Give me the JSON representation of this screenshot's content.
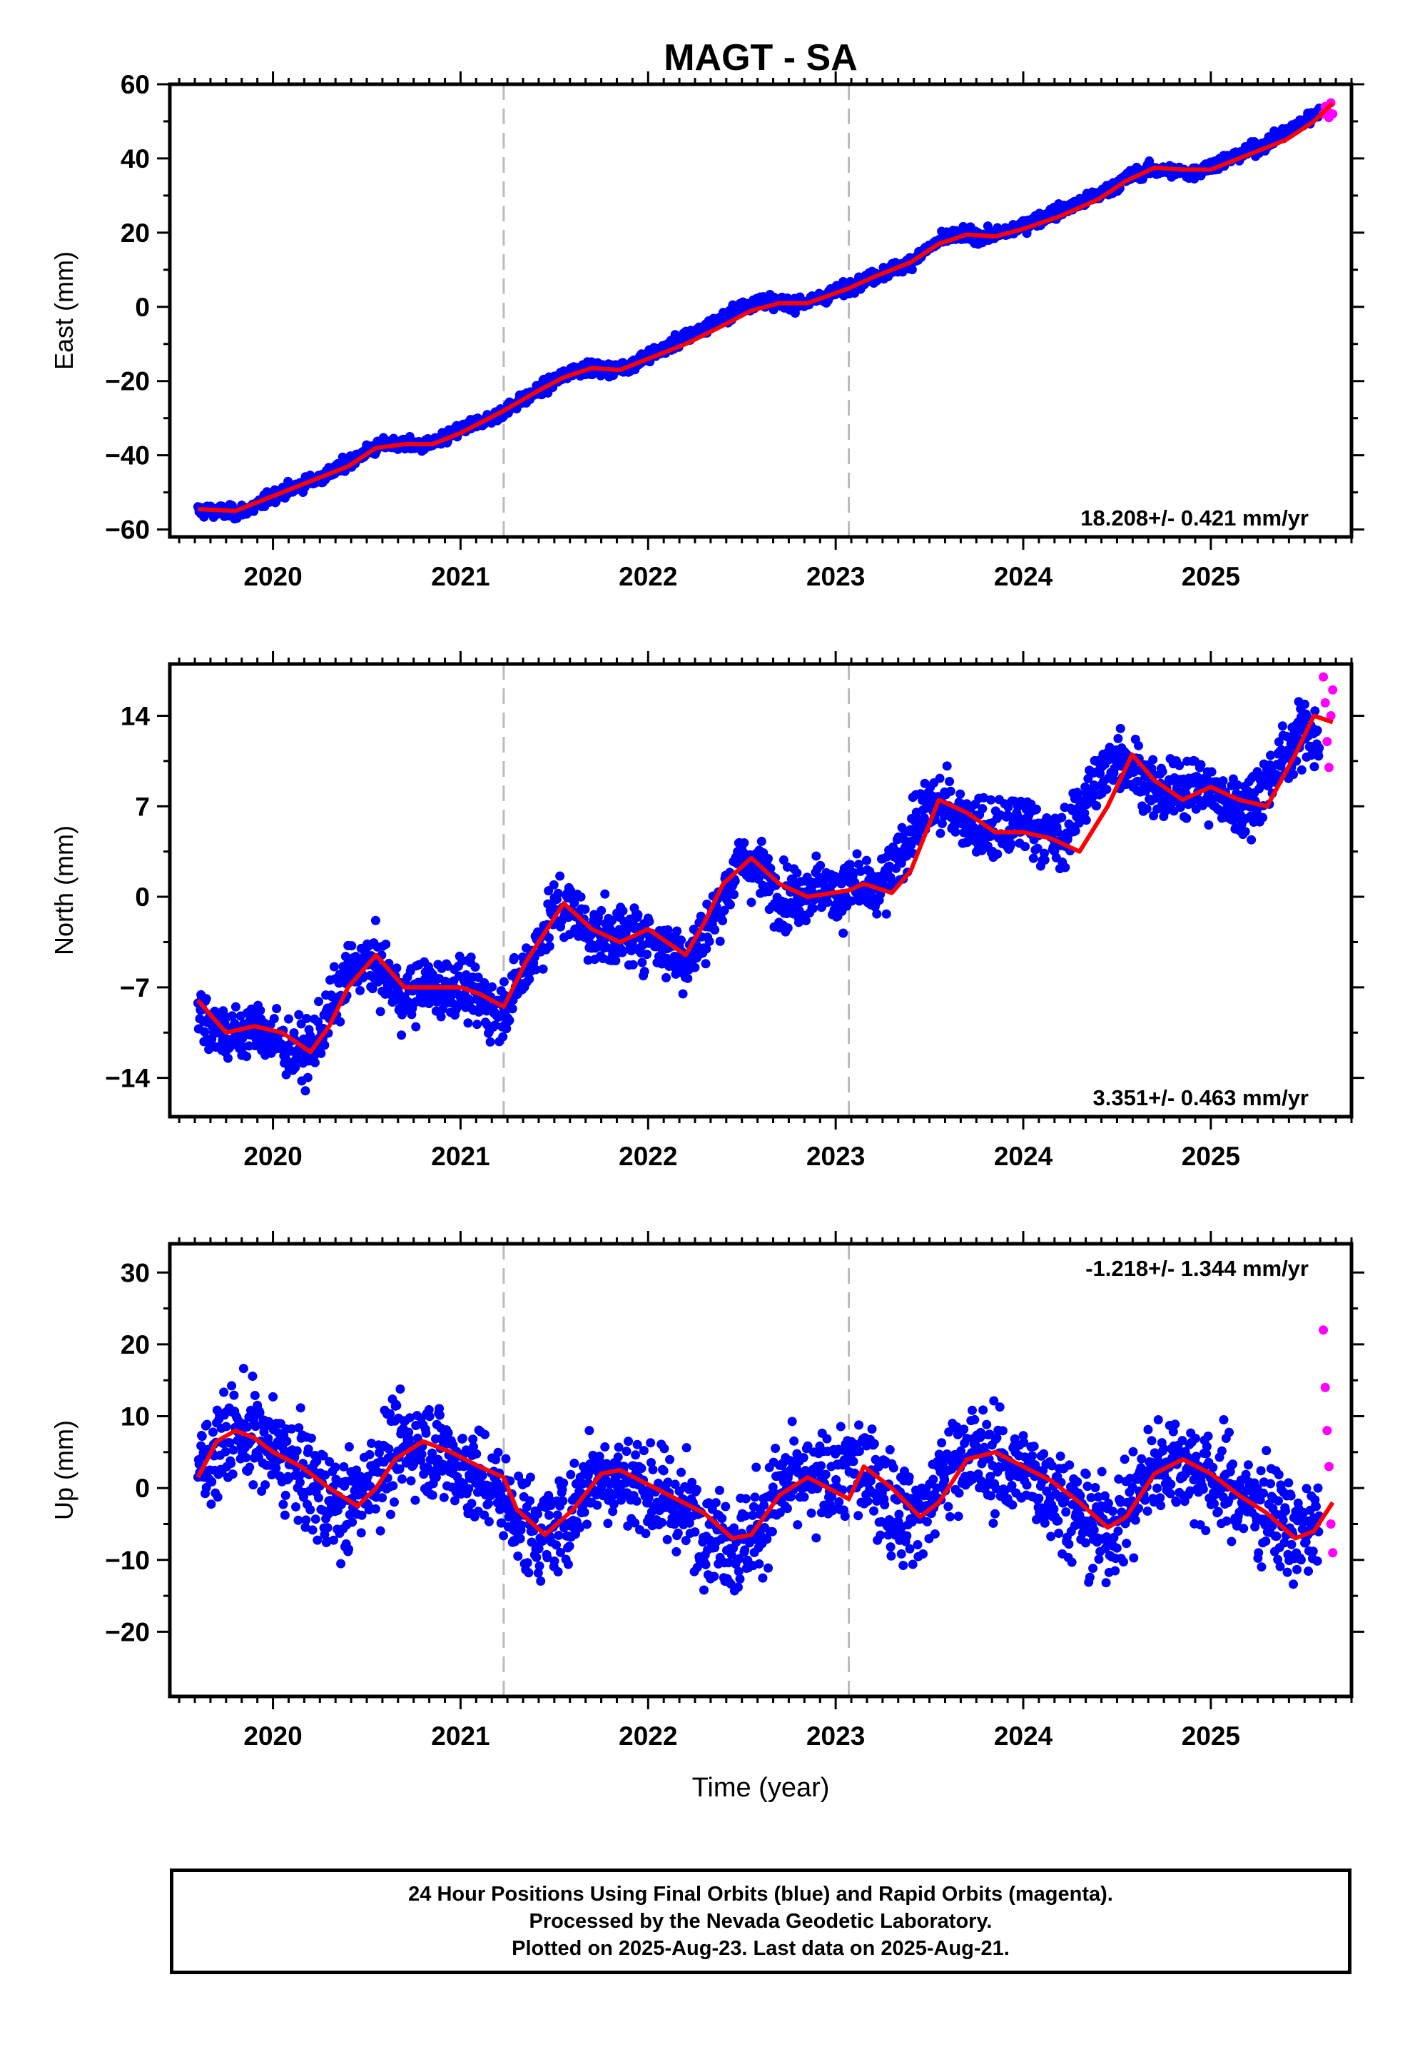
{
  "chart_data": [
    {
      "type": "scatter",
      "title": "MAGT - SA",
      "xlabel": "",
      "ylabel": "East (mm)",
      "xlim": [
        2019.45,
        2025.75
      ],
      "ylim": [
        -62,
        60
      ],
      "xticks": [
        "2020",
        "2021",
        "2022",
        "2023",
        "2024",
        "2025"
      ],
      "yticks": [
        "−60",
        "−40",
        "−20",
        "0",
        "20",
        "40",
        "60"
      ],
      "rate_label": "18.208+/- 0.421 mm/yr",
      "breaks": [
        2021.23,
        2023.07
      ],
      "grid": false,
      "series": [
        {
          "name": "Final Orbits",
          "color": "#0000ff",
          "marker": "dot",
          "x": [
            2019.6,
            2019.7,
            2019.8,
            2019.9,
            2020.0,
            2020.1,
            2020.2,
            2020.3,
            2020.4,
            2020.5,
            2020.6,
            2020.7,
            2020.8,
            2020.9,
            2021.0,
            2021.1,
            2021.2,
            2021.3,
            2021.4,
            2021.5,
            2021.6,
            2021.7,
            2021.8,
            2021.9,
            2022.0,
            2022.1,
            2022.2,
            2022.3,
            2022.4,
            2022.5,
            2022.6,
            2022.7,
            2022.8,
            2022.9,
            2023.0,
            2023.1,
            2023.2,
            2023.3,
            2023.4,
            2023.5,
            2023.6,
            2023.7,
            2023.8,
            2023.9,
            2024.0,
            2024.1,
            2024.2,
            2024.3,
            2024.4,
            2024.5,
            2024.6,
            2024.7,
            2024.8,
            2024.9,
            2025.0,
            2025.1,
            2025.2,
            2025.3,
            2025.4,
            2025.5,
            2025.58
          ],
          "y": [
            -55,
            -55,
            -55.5,
            -54,
            -51,
            -49,
            -47,
            -45,
            -42,
            -39,
            -37,
            -37,
            -37.5,
            -36,
            -33,
            -31,
            -29,
            -26,
            -23,
            -20,
            -17,
            -16.5,
            -17,
            -16,
            -13,
            -11,
            -8,
            -6,
            -3,
            0,
            2,
            1,
            1,
            2,
            4,
            6,
            8,
            10,
            12,
            16,
            19,
            19.5,
            19,
            20,
            22,
            24,
            26,
            28,
            30,
            33,
            36,
            37,
            36.5,
            36,
            38,
            40,
            42,
            44,
            47,
            50,
            53
          ]
        },
        {
          "name": "Rapid Orbits",
          "color": "#ff00ff",
          "marker": "dot",
          "x": [
            2025.6,
            2025.61,
            2025.62,
            2025.63,
            2025.64,
            2025.65
          ],
          "y": [
            52,
            54,
            53,
            51,
            55,
            52
          ]
        },
        {
          "name": "Model Fit",
          "color": "#ff0000",
          "marker": "line",
          "x": [
            2019.6,
            2019.8,
            2020.0,
            2020.2,
            2020.4,
            2020.55,
            2020.7,
            2020.85,
            2021.0,
            2021.23,
            2021.4,
            2021.55,
            2021.7,
            2021.85,
            2022.0,
            2022.2,
            2022.4,
            2022.55,
            2022.7,
            2022.85,
            2023.07,
            2023.2,
            2023.4,
            2023.55,
            2023.7,
            2023.85,
            2024.0,
            2024.2,
            2024.4,
            2024.55,
            2024.7,
            2024.85,
            2025.0,
            2025.2,
            2025.4,
            2025.55,
            2025.65
          ],
          "y": [
            -54.5,
            -55,
            -51,
            -47,
            -43,
            -38,
            -37,
            -37,
            -34,
            -28,
            -23,
            -19,
            -16.5,
            -17,
            -14,
            -10,
            -5,
            -1,
            1,
            1,
            5,
            8,
            12,
            17,
            19.5,
            19,
            21,
            24.5,
            29,
            34,
            37.5,
            37,
            37,
            41,
            45,
            50,
            55
          ]
        }
      ]
    },
    {
      "type": "scatter",
      "title": "",
      "xlabel": "",
      "ylabel": "North (mm)",
      "xlim": [
        2019.45,
        2025.75
      ],
      "ylim": [
        -17,
        18
      ],
      "xticks": [
        "2020",
        "2021",
        "2022",
        "2023",
        "2024",
        "2025"
      ],
      "yticks": [
        "−14",
        "−7",
        "0",
        "7",
        "14"
      ],
      "rate_label": "3.351+/- 0.463 mm/yr",
      "breaks": [
        2021.23,
        2023.07
      ],
      "grid": false,
      "series": [
        {
          "name": "Final Orbits",
          "color": "#0000ff",
          "marker": "dot",
          "x": [
            2019.6,
            2019.7,
            2019.8,
            2019.9,
            2020.0,
            2020.1,
            2020.2,
            2020.3,
            2020.4,
            2020.5,
            2020.6,
            2020.7,
            2020.8,
            2020.9,
            2021.0,
            2021.1,
            2021.2,
            2021.3,
            2021.4,
            2021.5,
            2021.6,
            2021.7,
            2021.8,
            2021.9,
            2022.0,
            2022.1,
            2022.2,
            2022.3,
            2022.4,
            2022.5,
            2022.6,
            2022.7,
            2022.8,
            2022.9,
            2023.0,
            2023.1,
            2023.2,
            2023.3,
            2023.4,
            2023.5,
            2023.6,
            2023.7,
            2023.8,
            2023.9,
            2024.0,
            2024.1,
            2024.2,
            2024.3,
            2024.4,
            2024.5,
            2024.6,
            2024.7,
            2024.8,
            2024.9,
            2025.0,
            2025.1,
            2025.2,
            2025.3,
            2025.4,
            2025.5,
            2025.58
          ],
          "y": [
            -9,
            -10,
            -11,
            -10,
            -11,
            -12,
            -12,
            -9,
            -6,
            -5,
            -6,
            -8,
            -7,
            -7,
            -7,
            -8,
            -9,
            -7,
            -4,
            -1,
            -1,
            -3,
            -3,
            -3,
            -3,
            -4,
            -5,
            -3,
            0,
            3,
            2,
            0,
            0,
            1,
            0,
            1,
            0,
            2,
            5,
            7,
            7,
            6,
            5,
            5,
            6,
            5,
            4,
            7,
            9,
            11,
            10,
            8,
            8,
            9,
            8,
            7,
            7,
            9,
            11,
            13,
            12
          ]
        },
        {
          "name": "Rapid Orbits",
          "color": "#ff00ff",
          "marker": "dot",
          "x": [
            2025.6,
            2025.61,
            2025.62,
            2025.63,
            2025.64,
            2025.65
          ],
          "y": [
            17,
            15,
            12,
            10,
            14,
            16
          ]
        },
        {
          "name": "Model Fit",
          "color": "#ff0000",
          "marker": "line",
          "x": [
            2019.6,
            2019.75,
            2019.9,
            2020.05,
            2020.2,
            2020.3,
            2020.4,
            2020.55,
            2020.7,
            2020.85,
            2021.0,
            2021.1,
            2021.23,
            2021.35,
            2021.55,
            2021.7,
            2021.85,
            2022.0,
            2022.1,
            2022.2,
            2022.3,
            2022.4,
            2022.55,
            2022.7,
            2022.85,
            2023.07,
            2023.15,
            2023.3,
            2023.4,
            2023.55,
            2023.7,
            2023.85,
            2024.0,
            2024.15,
            2024.3,
            2024.45,
            2024.58,
            2024.7,
            2024.85,
            2025.0,
            2025.15,
            2025.3,
            2025.45,
            2025.55,
            2025.65
          ],
          "y": [
            -8,
            -10.5,
            -10,
            -10.5,
            -12,
            -10,
            -7,
            -4.5,
            -7,
            -7,
            -7,
            -7.5,
            -8.5,
            -5,
            -0.5,
            -2.5,
            -3.5,
            -2.5,
            -3.5,
            -4.5,
            -2,
            1,
            3,
            1,
            0,
            0.5,
            1,
            0.3,
            2,
            7.5,
            6.5,
            5,
            5,
            4.5,
            3.5,
            7,
            11,
            9,
            7.5,
            8.5,
            7.5,
            7,
            11,
            14,
            13.5
          ]
        }
      ]
    },
    {
      "type": "scatter",
      "title": "",
      "xlabel": "Time (year)",
      "ylabel": "Up (mm)",
      "xlim": [
        2019.45,
        2025.75
      ],
      "ylim": [
        -29,
        34
      ],
      "xticks": [
        "2020",
        "2021",
        "2022",
        "2023",
        "2024",
        "2025"
      ],
      "yticks": [
        "−20",
        "−10",
        "0",
        "10",
        "20",
        "30"
      ],
      "rate_label": "-1.218+/- 1.344 mm/yr",
      "breaks": [
        2021.23,
        2023.07
      ],
      "grid": false,
      "series": [
        {
          "name": "Final Orbits",
          "color": "#0000ff",
          "marker": "dot",
          "x": [
            2019.6,
            2019.7,
            2019.8,
            2019.9,
            2020.0,
            2020.1,
            2020.2,
            2020.3,
            2020.4,
            2020.5,
            2020.6,
            2020.7,
            2020.8,
            2020.9,
            2021.0,
            2021.1,
            2021.2,
            2021.3,
            2021.4,
            2021.5,
            2021.6,
            2021.7,
            2021.8,
            2021.9,
            2022.0,
            2022.1,
            2022.2,
            2022.3,
            2022.4,
            2022.5,
            2022.6,
            2022.7,
            2022.8,
            2022.9,
            2023.0,
            2023.1,
            2023.2,
            2023.3,
            2023.4,
            2023.5,
            2023.6,
            2023.7,
            2023.8,
            2023.9,
            2024.0,
            2024.1,
            2024.2,
            2024.3,
            2024.4,
            2024.5,
            2024.6,
            2024.7,
            2024.8,
            2024.9,
            2025.0,
            2025.1,
            2025.2,
            2025.3,
            2025.4,
            2025.5,
            2025.58
          ],
          "y": [
            2,
            6,
            8,
            7,
            5,
            3,
            1,
            -2,
            -3,
            1,
            4,
            6,
            6,
            5,
            3,
            1,
            0,
            -4,
            -6,
            -6,
            -3,
            2,
            2,
            1,
            0,
            -2,
            -3,
            -5,
            -7,
            -8,
            -5,
            0,
            1,
            0,
            2,
            3,
            1,
            -2,
            -4,
            -2,
            3,
            5,
            4,
            3,
            2,
            1,
            -1,
            -4,
            -6,
            -5,
            -1,
            3,
            4,
            3,
            1,
            0,
            -2,
            -3,
            -5,
            -7,
            -4
          ]
        },
        {
          "name": "Rapid Orbits",
          "color": "#ff00ff",
          "marker": "dot",
          "x": [
            2025.6,
            2025.61,
            2025.62,
            2025.63,
            2025.64,
            2025.65
          ],
          "y": [
            22,
            14,
            8,
            3,
            -5,
            -9
          ]
        },
        {
          "name": "Model Fit",
          "color": "#ff0000",
          "marker": "line",
          "x": [
            2019.6,
            2019.7,
            2019.8,
            2019.9,
            2020.0,
            2020.15,
            2020.3,
            2020.45,
            2020.55,
            2020.65,
            2020.8,
            2020.95,
            2021.1,
            2021.23,
            2021.3,
            2021.45,
            2021.6,
            2021.75,
            2021.85,
            2022.0,
            2022.15,
            2022.3,
            2022.45,
            2022.55,
            2022.7,
            2022.85,
            2023.07,
            2023.15,
            2023.3,
            2023.45,
            2023.55,
            2023.7,
            2023.85,
            2024.0,
            2024.15,
            2024.3,
            2024.45,
            2024.55,
            2024.7,
            2024.85,
            2025.0,
            2025.15,
            2025.3,
            2025.45,
            2025.55,
            2025.65
          ],
          "y": [
            1.5,
            6.5,
            8,
            7,
            5,
            3,
            0,
            -2.5,
            0,
            4,
            6.5,
            5,
            3,
            1.5,
            -3,
            -6.5,
            -3,
            2,
            2.5,
            0.5,
            -1.5,
            -3.5,
            -7,
            -6.5,
            -1,
            1.5,
            -1.5,
            3,
            0,
            -4,
            -2,
            4,
            5,
            3,
            1,
            -2,
            -5.5,
            -4,
            2,
            4,
            2,
            -1,
            -3.5,
            -7,
            -6,
            -2
          ]
        }
      ]
    }
  ],
  "footer": {
    "line1": "24 Hour Positions Using Final Orbits (blue) and Rapid Orbits (magenta).",
    "line2": "Processed by the Nevada Geodetic Laboratory.",
    "line3": "Plotted on 2025-Aug-23. Last data on 2025-Aug-21."
  }
}
